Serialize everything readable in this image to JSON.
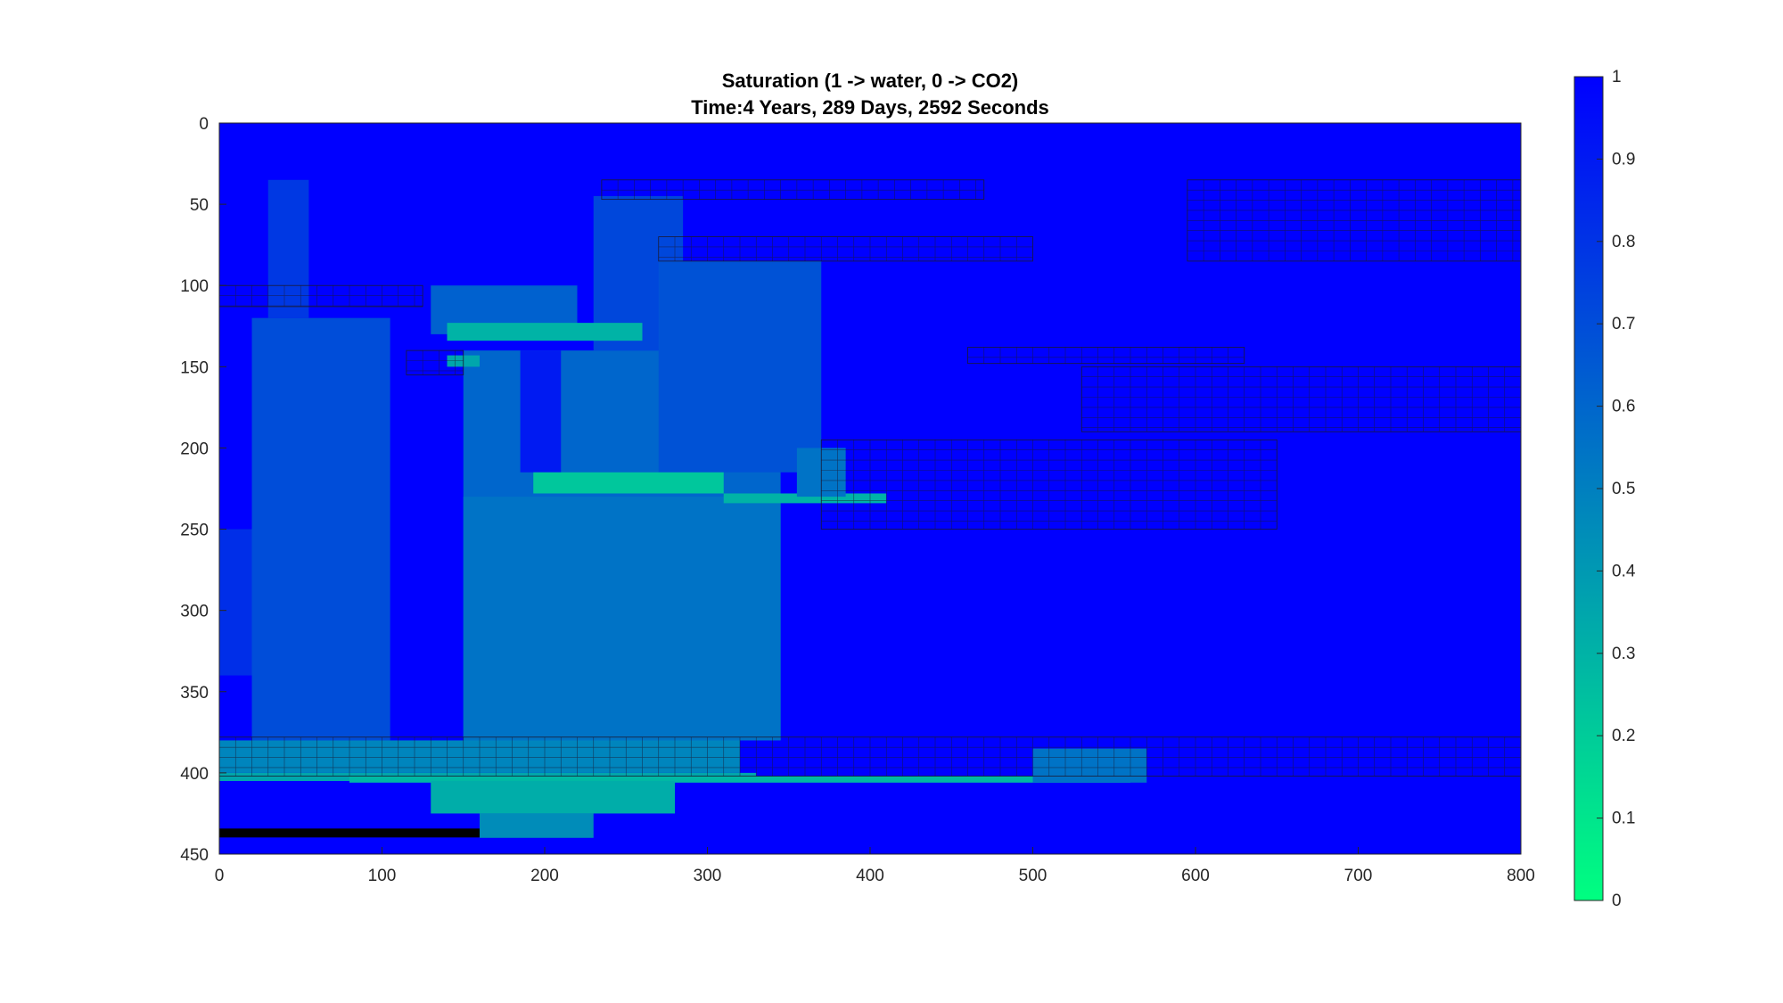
{
  "chart_data": {
    "type": "heatmap",
    "title": "Saturation (1 -> water, 0 -> CO2)",
    "subtitle": "Time:4 Years, 289 Days, 2592 Seconds",
    "xlabel": "",
    "ylabel": "",
    "xlim": [
      0,
      800
    ],
    "ylim": [
      0,
      450
    ],
    "y_direction": "reverse",
    "x_ticks": [
      "0",
      "100",
      "200",
      "300",
      "400",
      "500",
      "600",
      "700",
      "800"
    ],
    "y_ticks": [
      "0",
      "50",
      "100",
      "150",
      "200",
      "250",
      "300",
      "350",
      "400",
      "450"
    ],
    "colorbar": {
      "range": [
        0,
        1
      ],
      "ticks": [
        "0",
        "0.1",
        "0.2",
        "0.3",
        "0.4",
        "0.5",
        "0.6",
        "0.7",
        "0.8",
        "0.9",
        "1"
      ],
      "color_min": "#00ff80",
      "color_max": "#0000ff"
    },
    "background_value": 1.0,
    "regions": [
      {
        "x": [
          20,
          105
        ],
        "y": [
          120,
          380
        ],
        "value": 0.7
      },
      {
        "x": [
          30,
          55
        ],
        "y": [
          35,
          120
        ],
        "value": 0.78
      },
      {
        "x": [
          0,
          20
        ],
        "y": [
          250,
          340
        ],
        "value": 0.82
      },
      {
        "x": [
          150,
          345
        ],
        "y": [
          140,
          380
        ],
        "value": 0.6
      },
      {
        "x": [
          150,
          345
        ],
        "y": [
          230,
          380
        ],
        "value": 0.55
      },
      {
        "x": [
          185,
          210
        ],
        "y": [
          140,
          215
        ],
        "value": 0.9
      },
      {
        "x": [
          230,
          285
        ],
        "y": [
          45,
          140
        ],
        "value": 0.72
      },
      {
        "x": [
          270,
          370
        ],
        "y": [
          85,
          215
        ],
        "value": 0.68
      },
      {
        "x": [
          130,
          220
        ],
        "y": [
          100,
          130
        ],
        "value": 0.62
      },
      {
        "x": [
          140,
          260
        ],
        "y": [
          123,
          134
        ],
        "value": 0.3
      },
      {
        "x": [
          140,
          160
        ],
        "y": [
          143,
          150
        ],
        "value": 0.35
      },
      {
        "x": [
          193,
          310
        ],
        "y": [
          215,
          228
        ],
        "value": 0.22
      },
      {
        "x": [
          310,
          410
        ],
        "y": [
          228,
          234
        ],
        "value": 0.3
      },
      {
        "x": [
          355,
          385
        ],
        "y": [
          200,
          230
        ],
        "value": 0.55
      },
      {
        "x": [
          0,
          320
        ],
        "y": [
          380,
          400
        ],
        "value": 0.48
      },
      {
        "x": [
          0,
          330
        ],
        "y": [
          400,
          405
        ],
        "value": 0.35
      },
      {
        "x": [
          80,
          560
        ],
        "y": [
          402,
          406
        ],
        "value": 0.28
      },
      {
        "x": [
          500,
          570
        ],
        "y": [
          385,
          406
        ],
        "value": 0.55
      },
      {
        "x": [
          130,
          280
        ],
        "y": [
          405,
          425
        ],
        "value": 0.32
      },
      {
        "x": [
          160,
          230
        ],
        "y": [
          425,
          440
        ],
        "value": 0.45
      }
    ],
    "low_permeability_layers": [
      {
        "x": [
          0,
          800
        ],
        "y": [
          378,
          402
        ]
      },
      {
        "x": [
          0,
          125
        ],
        "y": [
          100,
          113
        ]
      },
      {
        "x": [
          235,
          470
        ],
        "y": [
          35,
          47
        ]
      },
      {
        "x": [
          270,
          500
        ],
        "y": [
          70,
          85
        ]
      },
      {
        "x": [
          595,
          800
        ],
        "y": [
          35,
          85
        ]
      },
      {
        "x": [
          460,
          630
        ],
        "y": [
          138,
          148
        ]
      },
      {
        "x": [
          530,
          800
        ],
        "y": [
          150,
          190
        ]
      },
      {
        "x": [
          370,
          650
        ],
        "y": [
          195,
          250
        ]
      },
      {
        "x": [
          115,
          150
        ],
        "y": [
          140,
          155
        ]
      }
    ],
    "well": {
      "x": [
        0,
        160
      ],
      "y": 437
    }
  }
}
